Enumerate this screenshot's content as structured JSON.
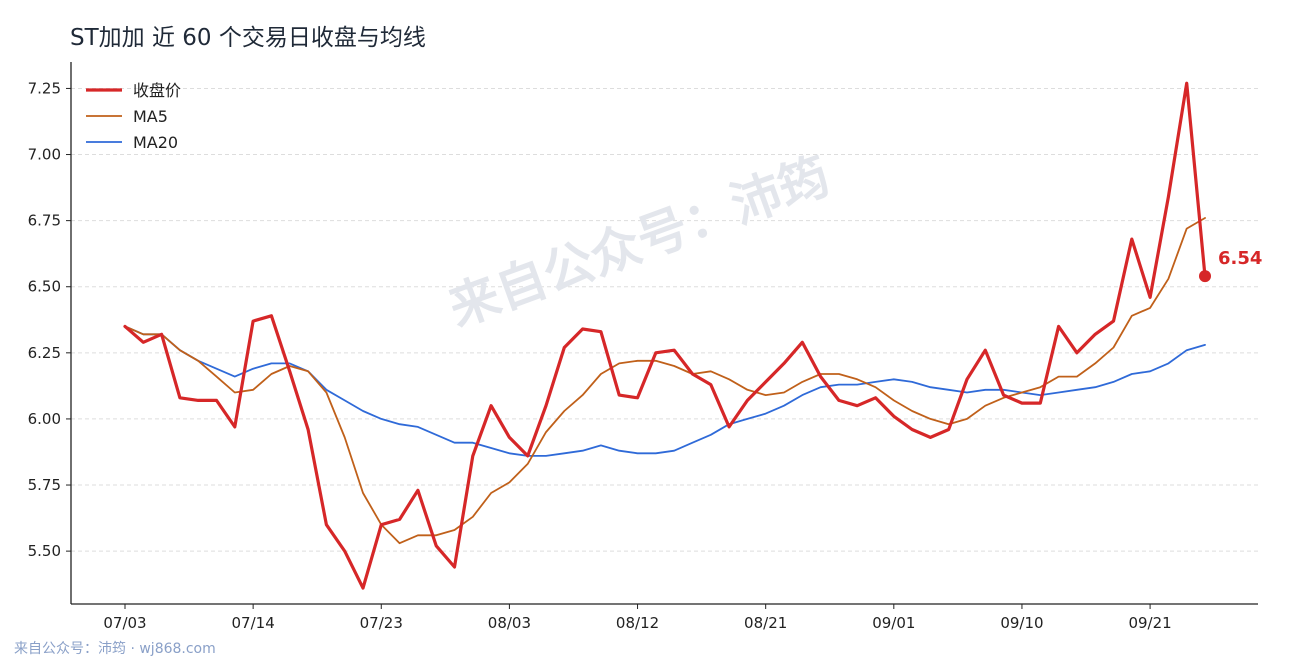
{
  "title": "ST加加 近 60 个交易日收盘与均线",
  "watermark": "来自公众号：沛筠",
  "footer": "来自公众号：沛筠 · wj868.com",
  "colors": {
    "close": "#d62728",
    "ma5": "#c0601a",
    "ma20": "#2f6ad8",
    "axis": "#222222",
    "grid": "#dddddd",
    "watermark": "#e3e6ec"
  },
  "chart_data": {
    "type": "line",
    "title": "ST加加 近 60 个交易日收盘与均线",
    "xlabel": "",
    "ylabel": "",
    "ylim": [
      5.3,
      7.35
    ],
    "yticks": [
      "5.50",
      "5.75",
      "6.00",
      "6.25",
      "6.50",
      "6.75",
      "7.00",
      "7.25"
    ],
    "x_tick_labels": [
      "07/03",
      "07/14",
      "07/23",
      "08/03",
      "08/12",
      "08/21",
      "09/01",
      "09/10",
      "09/21"
    ],
    "x_tick_index": [
      0,
      7,
      14,
      21,
      28,
      35,
      42,
      49,
      56
    ],
    "grid": "horizontal dashed",
    "legend_position": "top-left",
    "last_value_label": "6.54",
    "series": [
      {
        "name": "收盘价",
        "values": [
          6.35,
          6.29,
          6.32,
          6.08,
          6.07,
          6.07,
          5.97,
          6.37,
          6.39,
          6.18,
          5.96,
          5.6,
          5.5,
          5.36,
          5.6,
          5.62,
          5.73,
          5.52,
          5.44,
          5.86,
          6.05,
          5.93,
          5.86,
          6.05,
          6.27,
          6.34,
          6.33,
          6.09,
          6.08,
          6.25,
          6.26,
          6.17,
          6.13,
          5.97,
          6.07,
          6.14,
          6.21,
          6.29,
          6.16,
          6.07,
          6.05,
          6.08,
          6.01,
          5.96,
          5.93,
          5.96,
          6.15,
          6.26,
          6.09,
          6.06,
          6.06,
          6.35,
          6.25,
          6.32,
          6.37,
          6.68,
          6.46,
          6.84,
          7.27,
          6.54
        ]
      },
      {
        "name": "MA5",
        "values": [
          6.35,
          6.32,
          6.32,
          6.26,
          6.22,
          6.16,
          6.1,
          6.11,
          6.17,
          6.2,
          6.18,
          6.1,
          5.93,
          5.72,
          5.6,
          5.53,
          5.56,
          5.56,
          5.58,
          5.63,
          5.72,
          5.76,
          5.83,
          5.95,
          6.03,
          6.09,
          6.17,
          6.21,
          6.22,
          6.22,
          6.2,
          6.17,
          6.18,
          6.15,
          6.11,
          6.09,
          6.1,
          6.14,
          6.17,
          6.17,
          6.15,
          6.12,
          6.07,
          6.03,
          6.0,
          5.98,
          6.0,
          6.05,
          6.08,
          6.1,
          6.12,
          6.16,
          6.16,
          6.21,
          6.27,
          6.39,
          6.42,
          6.53,
          6.72,
          6.76
        ]
      },
      {
        "name": "MA20",
        "values": [
          6.35,
          6.32,
          6.32,
          6.26,
          6.22,
          6.19,
          6.16,
          6.19,
          6.21,
          6.21,
          6.18,
          6.11,
          6.07,
          6.03,
          6.0,
          5.98,
          5.97,
          5.94,
          5.91,
          5.91,
          5.89,
          5.87,
          5.86,
          5.86,
          5.87,
          5.88,
          5.9,
          5.88,
          5.87,
          5.87,
          5.88,
          5.91,
          5.94,
          5.98,
          6.0,
          6.02,
          6.05,
          6.09,
          6.12,
          6.13,
          6.13,
          6.14,
          6.15,
          6.14,
          6.12,
          6.11,
          6.1,
          6.11,
          6.11,
          6.1,
          6.09,
          6.1,
          6.11,
          6.12,
          6.14,
          6.17,
          6.18,
          6.21,
          6.26,
          6.28
        ]
      }
    ]
  }
}
